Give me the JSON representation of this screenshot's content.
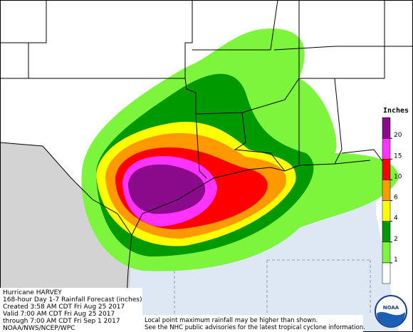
{
  "title": "Hurricane HARVEY",
  "subtitle": "168-hour Day 1-7 Rainfall Forecast (inches)",
  "created": "Created 3:58 AM CDT Fri Aug 25 2017",
  "valid": "Valid 7:00 AM CDT Fri Aug 25 2017",
  "through": "through 7:00 AM CDT Fri Sep 1 2017",
  "source": "NOAA/NWS/NCEP/WPC",
  "notes": [
    "Local point maximum rainfall may be higher than shown.",
    "See the NHC public advisories for the latest tropical cyclone information."
  ],
  "logo": "NOAA",
  "legend": {
    "title": "Inches",
    "levels": [
      1,
      2,
      4,
      6,
      10,
      15,
      20
    ],
    "colors": [
      "#ffffff",
      "#7cf53c",
      "#009a00",
      "#ffff00",
      "#ff9900",
      "#ff0000",
      "#ff33ff",
      "#8b0a8b"
    ]
  }
}
